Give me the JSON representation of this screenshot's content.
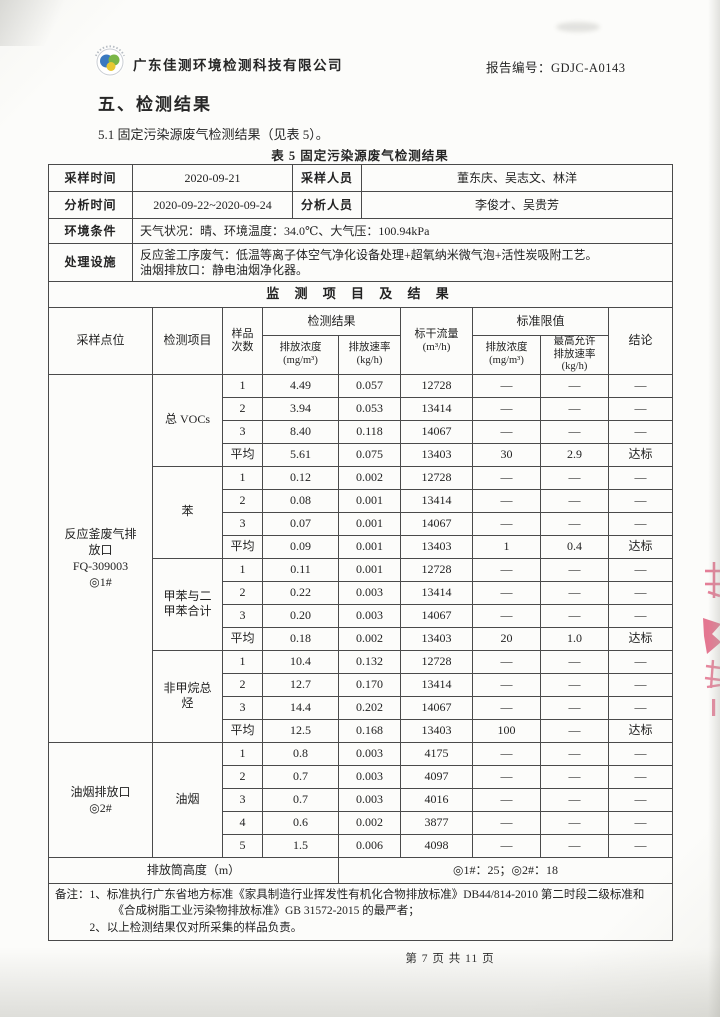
{
  "page": {
    "company": "广东佳测环境检测科技有限公司",
    "report_no_label": "报告编号：",
    "report_no": "GDJC-A0143",
    "section_title": "五、检测结果",
    "intro": "5.1 固定污染源废气检测结果（见表 5）。",
    "table_caption": "表 5  固定污染源废气检测结果",
    "footer": "第 7 页 共 11 页"
  },
  "icons": {
    "logo": "company-logo-circle-blue-green-yellow",
    "seal": "red-seal-fragment"
  },
  "colors": {
    "paper": "#fcfcfa",
    "border": "#4a4a4a",
    "seal": "#dd5577",
    "logo_blue": "#3a79c0",
    "logo_green": "#7ab648",
    "logo_yellow": "#e8c832"
  },
  "info": {
    "sampling_time_label": "采样时间",
    "sampling_time": "2020-09-21",
    "sampling_staff_label": "采样人员",
    "sampling_staff": "董东庆、吴志文、林洋",
    "analysis_time_label": "分析时间",
    "analysis_time": "2020-09-22~2020-09-24",
    "analysis_staff_label": "分析人员",
    "analysis_staff": "李俊才、吴贵芳",
    "env_label": "环境条件",
    "env_value": "天气状况：晴、环境温度：34.0℃、大气压：100.94kPa",
    "facility_label": "处理设施",
    "facility_value": "反应釜工序废气：低温等离子体空气净化设备处理+超氧纳米微气泡+活性炭吸附工艺。\n油烟排放口：静电油烟净化器。"
  },
  "results": {
    "section_title": "监 测 项 目 及 结 果",
    "headers": {
      "point": "采样点位",
      "item": "检测项目",
      "sample_no": "样品\n次数",
      "result_group": "检测结果",
      "concentration": "排放浓度\n(mg/m³)",
      "rate": "排放速率\n(kg/h)",
      "flow": "标干流量\n(m³/h)",
      "limit_group": "标准限值",
      "limit_concentration": "排放浓度\n(mg/m³)",
      "max_rate": "最高允许\n排放速率\n(kg/h)",
      "conclusion": "结论"
    },
    "groups": [
      {
        "point": "反应釜废气排\n放口\nFQ-309003\n◎1#",
        "items": [
          {
            "name": "总 VOCs",
            "rows": [
              [
                "1",
                "4.49",
                "0.057",
                "12728",
                "—",
                "—",
                "—"
              ],
              [
                "2",
                "3.94",
                "0.053",
                "13414",
                "—",
                "—",
                "—"
              ],
              [
                "3",
                "8.40",
                "0.118",
                "14067",
                "—",
                "—",
                "—"
              ],
              [
                "平均",
                "5.61",
                "0.075",
                "13403",
                "30",
                "2.9",
                "达标"
              ]
            ]
          },
          {
            "name": "苯",
            "rows": [
              [
                "1",
                "0.12",
                "0.002",
                "12728",
                "—",
                "—",
                "—"
              ],
              [
                "2",
                "0.08",
                "0.001",
                "13414",
                "—",
                "—",
                "—"
              ],
              [
                "3",
                "0.07",
                "0.001",
                "14067",
                "—",
                "—",
                "—"
              ],
              [
                "平均",
                "0.09",
                "0.001",
                "13403",
                "1",
                "0.4",
                "达标"
              ]
            ]
          },
          {
            "name": "甲苯与二\n甲苯合计",
            "rows": [
              [
                "1",
                "0.11",
                "0.001",
                "12728",
                "—",
                "—",
                "—"
              ],
              [
                "2",
                "0.22",
                "0.003",
                "13414",
                "—",
                "—",
                "—"
              ],
              [
                "3",
                "0.20",
                "0.003",
                "14067",
                "—",
                "—",
                "—"
              ],
              [
                "平均",
                "0.18",
                "0.002",
                "13403",
                "20",
                "1.0",
                "达标"
              ]
            ]
          },
          {
            "name": "非甲烷总\n烃",
            "rows": [
              [
                "1",
                "10.4",
                "0.132",
                "12728",
                "—",
                "—",
                "—"
              ],
              [
                "2",
                "12.7",
                "0.170",
                "13414",
                "—",
                "—",
                "—"
              ],
              [
                "3",
                "14.4",
                "0.202",
                "14067",
                "—",
                "—",
                "—"
              ],
              [
                "平均",
                "12.5",
                "0.168",
                "13403",
                "100",
                "—",
                "达标"
              ]
            ]
          }
        ]
      },
      {
        "point": "油烟排放口\n◎2#",
        "items": [
          {
            "name": "油烟",
            "rows": [
              [
                "1",
                "0.8",
                "0.003",
                "4175",
                "—",
                "—",
                "—"
              ],
              [
                "2",
                "0.7",
                "0.003",
                "4097",
                "—",
                "—",
                "—"
              ],
              [
                "3",
                "0.7",
                "0.003",
                "4016",
                "—",
                "—",
                "—"
              ],
              [
                "4",
                "0.6",
                "0.002",
                "3877",
                "—",
                "—",
                "—"
              ],
              [
                "5",
                "1.5",
                "0.006",
                "4098",
                "—",
                "—",
                "—"
              ]
            ]
          }
        ]
      }
    ],
    "stack_height_label": "排放筒高度（m）",
    "stack_height_value": "◎1#：25；◎2#：18"
  },
  "remark": {
    "label": "备注：",
    "items": [
      "1、标准执行广东省地方标准《家具制造行业挥发性有机化合物排放标准》DB44/814-2010 第二时段二级标准和《合成树脂工业污染物排放标准》GB 31572-2015 的最严者；",
      "2、以上检测结果仅对所采集的样品负责。"
    ]
  }
}
